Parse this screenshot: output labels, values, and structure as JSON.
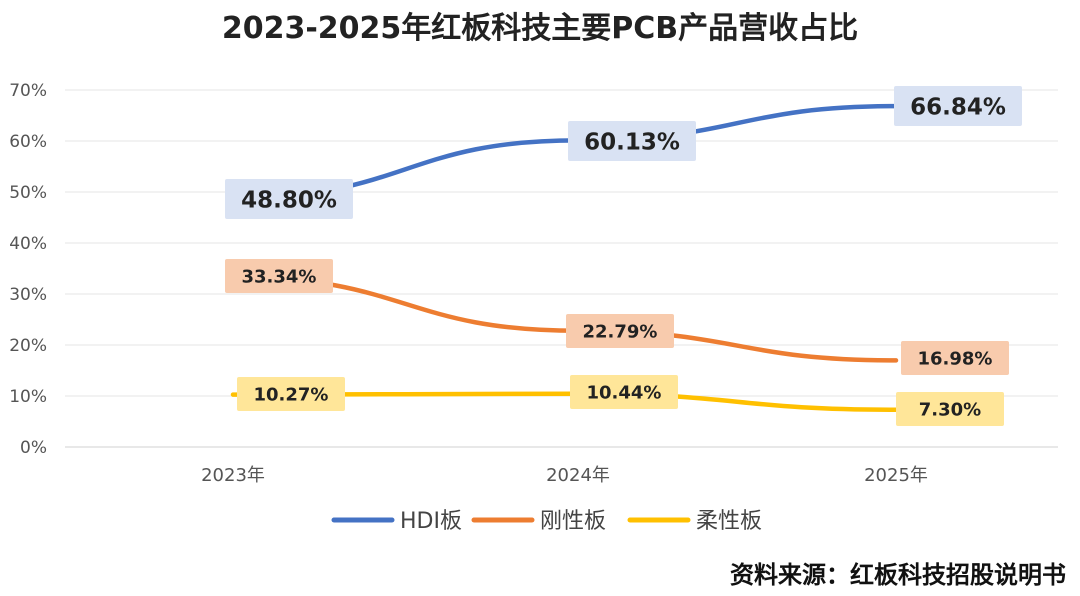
{
  "chart_data": {
    "type": "line",
    "title": "2023-2025年红板科技主要PCB产品营收占比",
    "categories": [
      "2023年",
      "2024年",
      "2025年"
    ],
    "ylim": [
      0,
      70
    ],
    "yticks": [
      "0%",
      "10%",
      "20%",
      "30%",
      "40%",
      "50%",
      "60%",
      "70%"
    ],
    "grid": true,
    "legend_position": "bottom",
    "series": [
      {
        "name": "HDI板",
        "values": [
          48.8,
          60.13,
          66.84
        ],
        "labels": [
          "48.80%",
          "60.13%",
          "66.84%"
        ],
        "color": "#4472C4",
        "label_bg": "#D9E2F3"
      },
      {
        "name": "刚性板",
        "values": [
          33.34,
          22.79,
          16.98
        ],
        "labels": [
          "33.34%",
          "22.79%",
          "16.98%"
        ],
        "color": "#ED7D31",
        "label_bg": "#F8CBAD"
      },
      {
        "name": "柔性板",
        "values": [
          10.27,
          10.44,
          7.3
        ],
        "labels": [
          "10.27%",
          "10.44%",
          "7.30%"
        ],
        "color": "#FFC000",
        "label_bg": "#FFE699"
      }
    ]
  },
  "source": "资料来源：红板科技招股说明书"
}
